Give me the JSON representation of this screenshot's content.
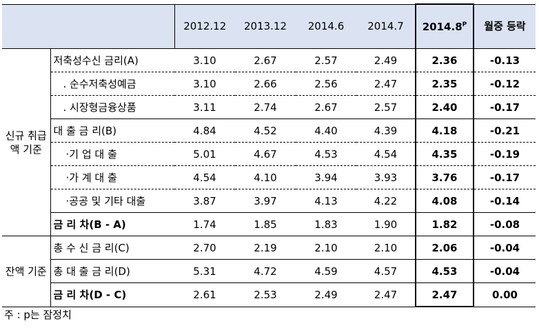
{
  "header": {
    "columns": [
      "2012.12",
      "2013.12",
      "2014.6",
      "2014.7"
    ],
    "current_col": "2014.8",
    "current_sup": "P",
    "change_col": "월중 등락"
  },
  "groups": {
    "new": "신규 취급액 기준",
    "balance": "잔액 기준"
  },
  "rows": [
    {
      "label": "저축성수신 금리(A)",
      "values": [
        "3.10",
        "2.67",
        "2.57",
        "2.49"
      ],
      "current": "2.36",
      "change": "-0.13"
    },
    {
      "label": ". 순수저축성예금",
      "values": [
        "3.10",
        "2.66",
        "2.56",
        "2.47"
      ],
      "current": "2.35",
      "change": "-0.12"
    },
    {
      "label": ". 시장형금융상품",
      "values": [
        "3.11",
        "2.74",
        "2.67",
        "2.57"
      ],
      "current": "2.40",
      "change": "-0.17"
    },
    {
      "label": "대 출 금 리(B)",
      "values": [
        "4.84",
        "4.52",
        "4.40",
        "4.39"
      ],
      "current": "4.18",
      "change": "-0.21"
    },
    {
      "label": "·기 업 대 출",
      "values": [
        "5.01",
        "4.67",
        "4.53",
        "4.54"
      ],
      "current": "4.35",
      "change": "-0.19"
    },
    {
      "label": "·가 계 대 출",
      "values": [
        "4.54",
        "4.10",
        "3.94",
        "3.93"
      ],
      "current": "3.76",
      "change": "-0.17"
    },
    {
      "label": "·공공 및 기타 대출",
      "values": [
        "3.87",
        "3.97",
        "4.13",
        "4.22"
      ],
      "current": "4.08",
      "change": "-0.14"
    },
    {
      "label": "금 리 차(B - A)",
      "values": [
        "1.74",
        "1.85",
        "1.83",
        "1.90"
      ],
      "current": "1.82",
      "change": "-0.08"
    },
    {
      "label": "총 수 신 금 리(C)",
      "values": [
        "2.70",
        "2.19",
        "2.10",
        "2.10"
      ],
      "current": "2.06",
      "change": "-0.04"
    },
    {
      "label": "총 대 출 금 리(D)",
      "values": [
        "5.31",
        "4.72",
        "4.59",
        "4.57"
      ],
      "current": "4.53",
      "change": "-0.04"
    },
    {
      "label": "금 리 차(D - C)",
      "values": [
        "2.61",
        "2.53",
        "2.49",
        "2.47"
      ],
      "current": "2.47",
      "change": "0.00"
    }
  ],
  "footnote": "주 : p는 잠정치"
}
